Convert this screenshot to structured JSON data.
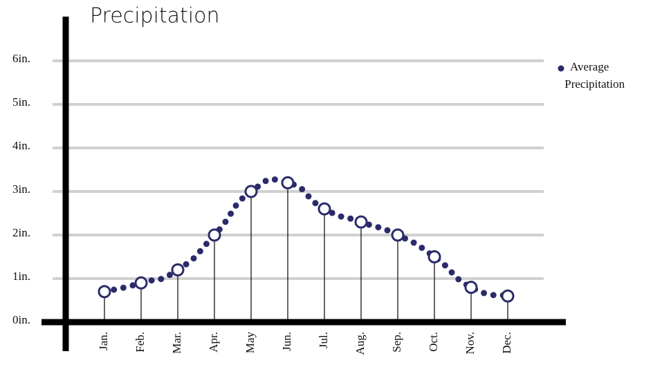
{
  "chart_data": {
    "type": "line",
    "title": "Precipitation",
    "categories": [
      "Jan.",
      "Feb.",
      "Mar.",
      "Apr.",
      "May",
      "Jun.",
      "Jul.",
      "Aug.",
      "Sep.",
      "Oct.",
      "Nov.",
      "Dec."
    ],
    "series": [
      {
        "name": "Average Precipitation",
        "color": "#2b2b6b",
        "values": [
          0.7,
          0.9,
          1.2,
          2.0,
          3.0,
          3.2,
          2.6,
          2.3,
          2.0,
          1.5,
          0.8,
          0.6
        ]
      }
    ],
    "ylim": [
      0,
      6
    ],
    "yticks": [
      {
        "value": 0,
        "label": "0in."
      },
      {
        "value": 1,
        "label": "1in."
      },
      {
        "value": 2,
        "label": "2in."
      },
      {
        "value": 3,
        "label": "3in."
      },
      {
        "value": 4,
        "label": "4in."
      },
      {
        "value": 5,
        "label": "5in."
      },
      {
        "value": 6,
        "label": "6in."
      }
    ],
    "grid": true,
    "legend": "right"
  }
}
